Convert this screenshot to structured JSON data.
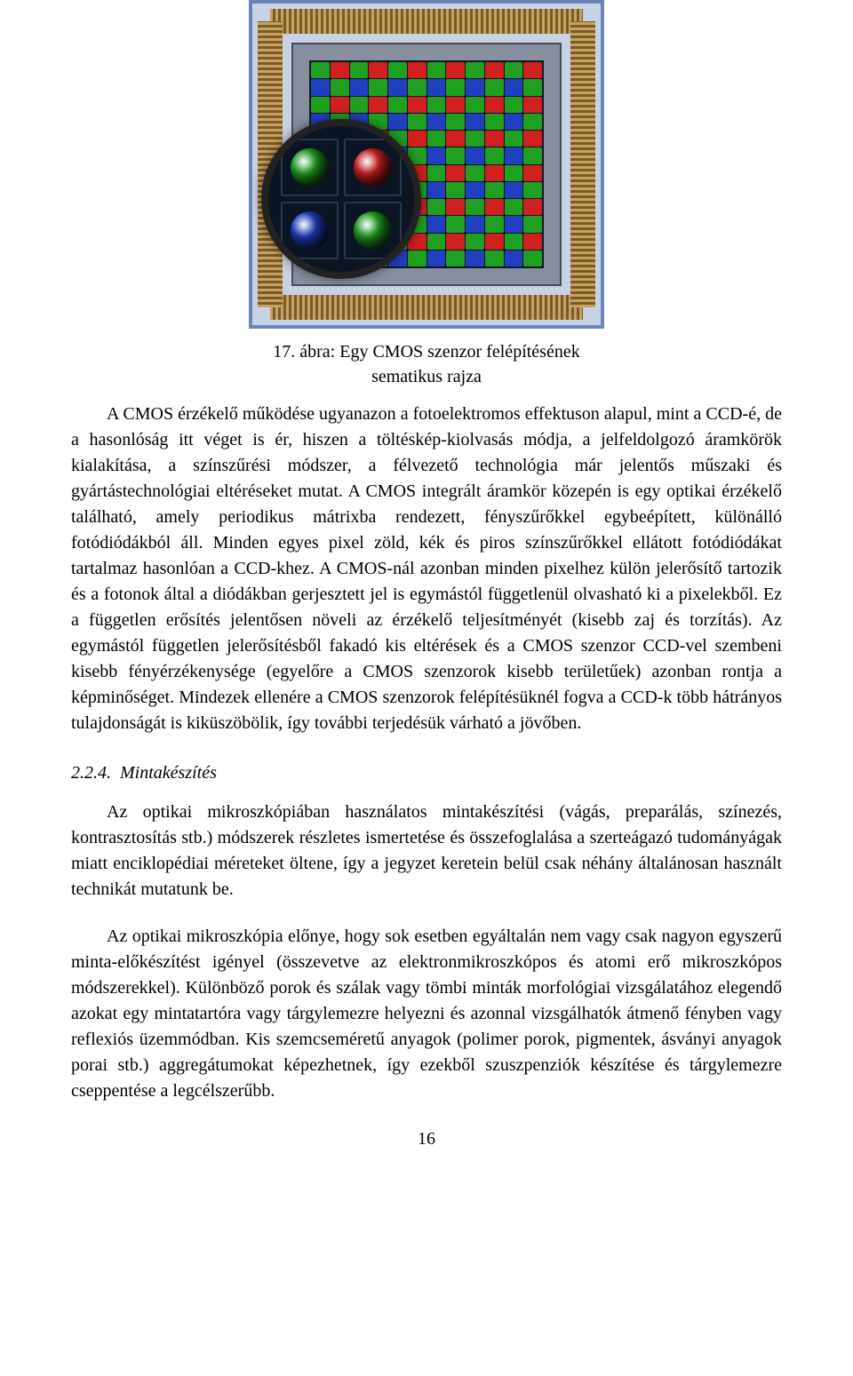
{
  "figure": {
    "caption_line1": "17. ábra: Egy CMOS szenzor felépítésének",
    "caption_line2": "sematikus rajza",
    "colors": {
      "frame_border": "#6a86b8",
      "frame_bg": "#c7d2e6",
      "bond_light": "#c8a260",
      "bond_dark": "#7a5a28",
      "core_bg": "#878f9e",
      "core_border": "#454c5c",
      "array_bg": "#101827",
      "magnifier_border": "#222222",
      "magnifier_bg": "#0b1422",
      "magnifier_cell_border": "#2b3648"
    },
    "bayer_pattern": {
      "type": "bayer-rgb",
      "base_colors": {
        "R": "#d02020",
        "G": "#20a020",
        "B": "#2040c0"
      },
      "grid_cols": 12,
      "grid_rows": 12
    },
    "magnifier_cells": [
      {
        "color": "#20a020"
      },
      {
        "color": "#d02020"
      },
      {
        "color": "#2040c0"
      },
      {
        "color": "#20a020"
      }
    ]
  },
  "paragraphs": {
    "p1": "A CMOS érzékelő működése ugyanazon a fotoelektromos effektuson alapul, mint a CCD-é, de a hasonlóság itt véget is ér, hiszen a töltéskép-kiolvasás módja, a jelfeldolgozó áramkörök kialakítása, a színszűrési módszer, a félvezető technológia már jelentős műszaki és gyártástechnológiai eltéréseket mutat. A CMOS integrált áramkör közepén is egy optikai érzékelő található, amely periodikus mátrixba rendezett, fényszűrőkkel egybeépített, különálló fotódiódákból áll. Minden egyes pixel zöld, kék és piros színszűrőkkel ellátott fotódiódákat tartalmaz hasonlóan a CCD-khez. A CMOS-nál azonban minden pixelhez külön jelerősítő tartozik és a fotonok által a diódákban gerjesztett jel is egymástól függetlenül olvasható ki a pixelekből. Ez a független erősítés jelentősen növeli az érzékelő teljesítményét (kisebb zaj és torzítás). Az egymástól független jelerősítésből fakadó kis eltérések és a CMOS szenzor CCD-vel szembeni kisebb fényérzékenysége (egyelőre a CMOS szenzorok kisebb területűek) azonban rontja a képminőséget. Mindezek ellenére a CMOS szenzorok felépítésüknél fogva a CCD-k több hátrányos tulajdonságát is kiküszöbölik, így további terjedésük várható a jövőben.",
    "p2": "Az optikai mikroszkópiában használatos mintakészítési (vágás, preparálás, színezés, kontrasztosítás stb.) módszerek részletes ismertetése és összefoglalása a szerteágazó tudományágak miatt enciklopédiai méreteket öltene, így a jegyzet keretein belül csak néhány általánosan használt technikát mutatunk be.",
    "p3": "Az optikai mikroszkópia előnye, hogy sok esetben egyáltalán nem vagy csak nagyon egyszerű minta-előkészítést igényel (összevetve az elektronmikroszkópos és atomi erő mikroszkópos módszerekkel). Különböző porok és szálak vagy tömbi minták morfológiai vizsgálatához elegendő azokat egy mintatartóra vagy tárgylemezre helyezni és azonnal vizsgálhatók átmenő fényben vagy reflexiós üzemmódban. Kis szemcseméretű anyagok (polimer porok, pigmentek, ásványi anyagok porai stb.) aggregátumokat képezhetnek, így ezekből szuszpenziók készítése és tárgylemezre cseppentése a legcélszerűbb."
  },
  "section": {
    "number": "2.2.4.",
    "title": "Mintakészítés"
  },
  "page_number": "16",
  "text_color": "#000000",
  "background_color": "#ffffff",
  "font_family": "Times New Roman",
  "base_font_size_pt": 15
}
